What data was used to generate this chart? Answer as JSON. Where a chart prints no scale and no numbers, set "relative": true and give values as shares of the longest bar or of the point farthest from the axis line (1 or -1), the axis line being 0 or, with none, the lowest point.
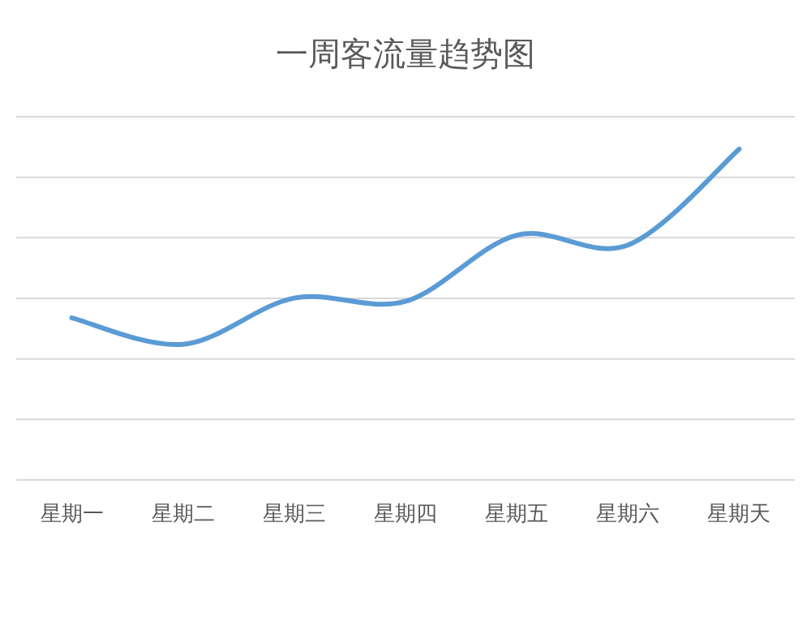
{
  "chart_data": {
    "type": "line",
    "title": "一周客流量趋势图",
    "relative": true,
    "grid": "y",
    "categories": [
      "星期一",
      "星期二",
      "星期三",
      "星期四",
      "星期五",
      "星期六",
      "星期天"
    ],
    "series": [
      {
        "color": "#5b9bd5",
        "values": [
          0.49,
          0.41,
          0.55,
          0.54,
          0.74,
          0.71,
          1.0
        ]
      }
    ],
    "marker": "none",
    "line_style": "solid"
  }
}
